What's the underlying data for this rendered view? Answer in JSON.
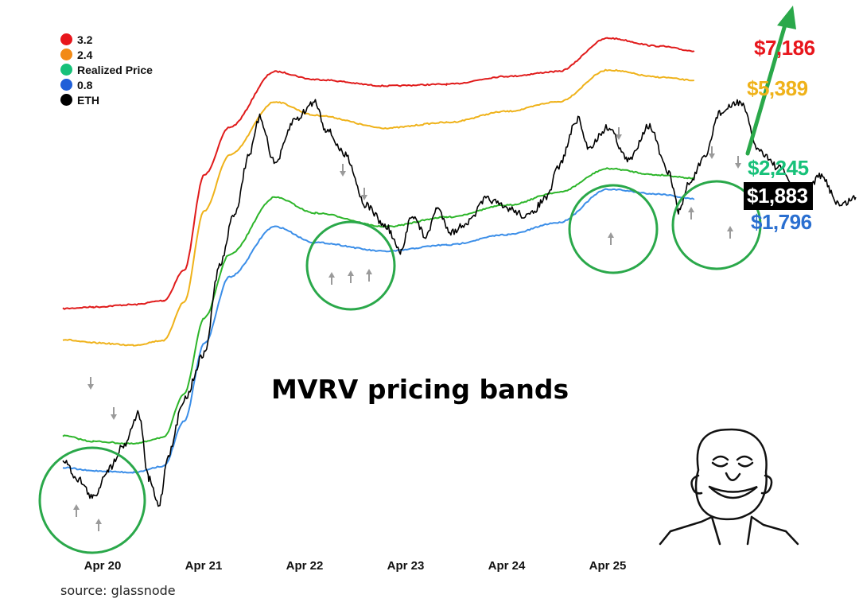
{
  "chart_data": {
    "type": "line",
    "title": "MVRV pricing bands",
    "source": "source: glassnode",
    "categories": [
      "Apr 20",
      "Apr 21",
      "Apr 22",
      "Apr 23",
      "Apr 24",
      "Apr 25"
    ],
    "legend_position": "top-left",
    "grid": false,
    "legend": [
      {
        "name": "3.2",
        "color": "#e8161c"
      },
      {
        "name": "2.4",
        "color": "#f28a16"
      },
      {
        "name": "Realized Price",
        "color": "#17c179"
      },
      {
        "name": "0.8",
        "color": "#1f5fd8"
      },
      {
        "name": "ETH",
        "color": "#000000"
      }
    ],
    "series": [
      {
        "name": "3.2",
        "color": "#e01b1b",
        "points": [
          [
            0,
            388
          ],
          [
            0.3,
            386
          ],
          [
            0.7,
            383
          ],
          [
            1.0,
            378
          ],
          [
            1.2,
            340
          ],
          [
            1.4,
            220
          ],
          [
            1.65,
            160
          ],
          [
            2.1,
            90
          ],
          [
            2.5,
            100
          ],
          [
            3.2,
            108
          ],
          [
            3.8,
            106
          ],
          [
            4.4,
            96
          ],
          [
            4.9,
            90
          ],
          [
            5.4,
            48
          ],
          [
            5.9,
            58
          ],
          [
            6.25,
            64
          ]
        ]
      },
      {
        "name": "2.4",
        "color": "#efb21a",
        "points": [
          [
            0,
            427
          ],
          [
            0.3,
            431
          ],
          [
            0.7,
            434
          ],
          [
            1.0,
            428
          ],
          [
            1.2,
            380
          ],
          [
            1.4,
            265
          ],
          [
            1.65,
            195
          ],
          [
            2.1,
            128
          ],
          [
            2.5,
            145
          ],
          [
            3.2,
            161
          ],
          [
            3.8,
            154
          ],
          [
            4.4,
            140
          ],
          [
            4.9,
            128
          ],
          [
            5.4,
            88
          ],
          [
            5.9,
            97
          ],
          [
            6.25,
            101
          ]
        ]
      },
      {
        "name": "Realized Price",
        "color": "#2db52a",
        "points": [
          [
            0,
            548
          ],
          [
            0.3,
            555
          ],
          [
            0.7,
            558
          ],
          [
            1.0,
            550
          ],
          [
            1.2,
            495
          ],
          [
            1.4,
            400
          ],
          [
            1.65,
            320
          ],
          [
            2.1,
            248
          ],
          [
            2.5,
            268
          ],
          [
            3.2,
            285
          ],
          [
            3.8,
            273
          ],
          [
            4.4,
            258
          ],
          [
            4.9,
            242
          ],
          [
            5.4,
            212
          ],
          [
            5.9,
            220
          ],
          [
            6.25,
            224
          ]
        ]
      },
      {
        "name": "0.8",
        "color": "#3b8ee8",
        "points": [
          [
            0,
            588
          ],
          [
            0.3,
            592
          ],
          [
            0.7,
            594
          ],
          [
            1.0,
            586
          ],
          [
            1.2,
            530
          ],
          [
            1.4,
            432
          ],
          [
            1.65,
            348
          ],
          [
            2.1,
            285
          ],
          [
            2.5,
            305
          ],
          [
            3.2,
            316
          ],
          [
            3.8,
            308
          ],
          [
            4.4,
            295
          ],
          [
            4.9,
            280
          ],
          [
            5.4,
            238
          ],
          [
            5.9,
            244
          ],
          [
            6.25,
            250
          ]
        ]
      },
      {
        "name": "ETH",
        "color": "#000000",
        "points": [
          [
            0,
            578
          ],
          [
            0.15,
            602
          ],
          [
            0.3,
            626
          ],
          [
            0.45,
            590
          ],
          [
            0.6,
            560
          ],
          [
            0.75,
            520
          ],
          [
            0.85,
            602
          ],
          [
            0.95,
            635
          ],
          [
            1.05,
            570
          ],
          [
            1.2,
            502
          ],
          [
            1.4,
            445
          ],
          [
            1.55,
            335
          ],
          [
            1.7,
            268
          ],
          [
            1.85,
            192
          ],
          [
            1.95,
            148
          ],
          [
            2.1,
            205
          ],
          [
            2.3,
            150
          ],
          [
            2.5,
            128
          ],
          [
            2.6,
            162
          ],
          [
            2.8,
            195
          ],
          [
            3.0,
            258
          ],
          [
            3.2,
            285
          ],
          [
            3.35,
            318
          ],
          [
            3.45,
            270
          ],
          [
            3.6,
            298
          ],
          [
            3.7,
            262
          ],
          [
            3.85,
            292
          ],
          [
            4.0,
            280
          ],
          [
            4.2,
            250
          ],
          [
            4.4,
            262
          ],
          [
            4.6,
            272
          ],
          [
            4.8,
            248
          ],
          [
            4.9,
            210
          ],
          [
            5.1,
            150
          ],
          [
            5.2,
            185
          ],
          [
            5.4,
            160
          ],
          [
            5.6,
            202
          ],
          [
            5.8,
            158
          ],
          [
            6.0,
            218
          ],
          [
            6.1,
            265
          ],
          [
            6.2,
            230
          ],
          [
            6.35,
            200
          ],
          [
            6.5,
            142
          ],
          [
            6.7,
            128
          ],
          [
            6.9,
            190
          ],
          [
            7.1,
            212
          ],
          [
            7.3,
            248
          ],
          [
            7.5,
            222
          ],
          [
            7.7,
            258
          ],
          [
            7.85,
            248
          ]
        ]
      }
    ],
    "price_labels": [
      {
        "text": "$7,186",
        "color": "#e8161c"
      },
      {
        "text": "$5,389",
        "color": "#efb21a"
      },
      {
        "text": "$2,245",
        "color": "#17c179"
      },
      {
        "text": "$1,883",
        "color": "#ffffff",
        "bg": "#000000"
      },
      {
        "text": "$1,796",
        "color": "#2a6fd0"
      }
    ]
  }
}
